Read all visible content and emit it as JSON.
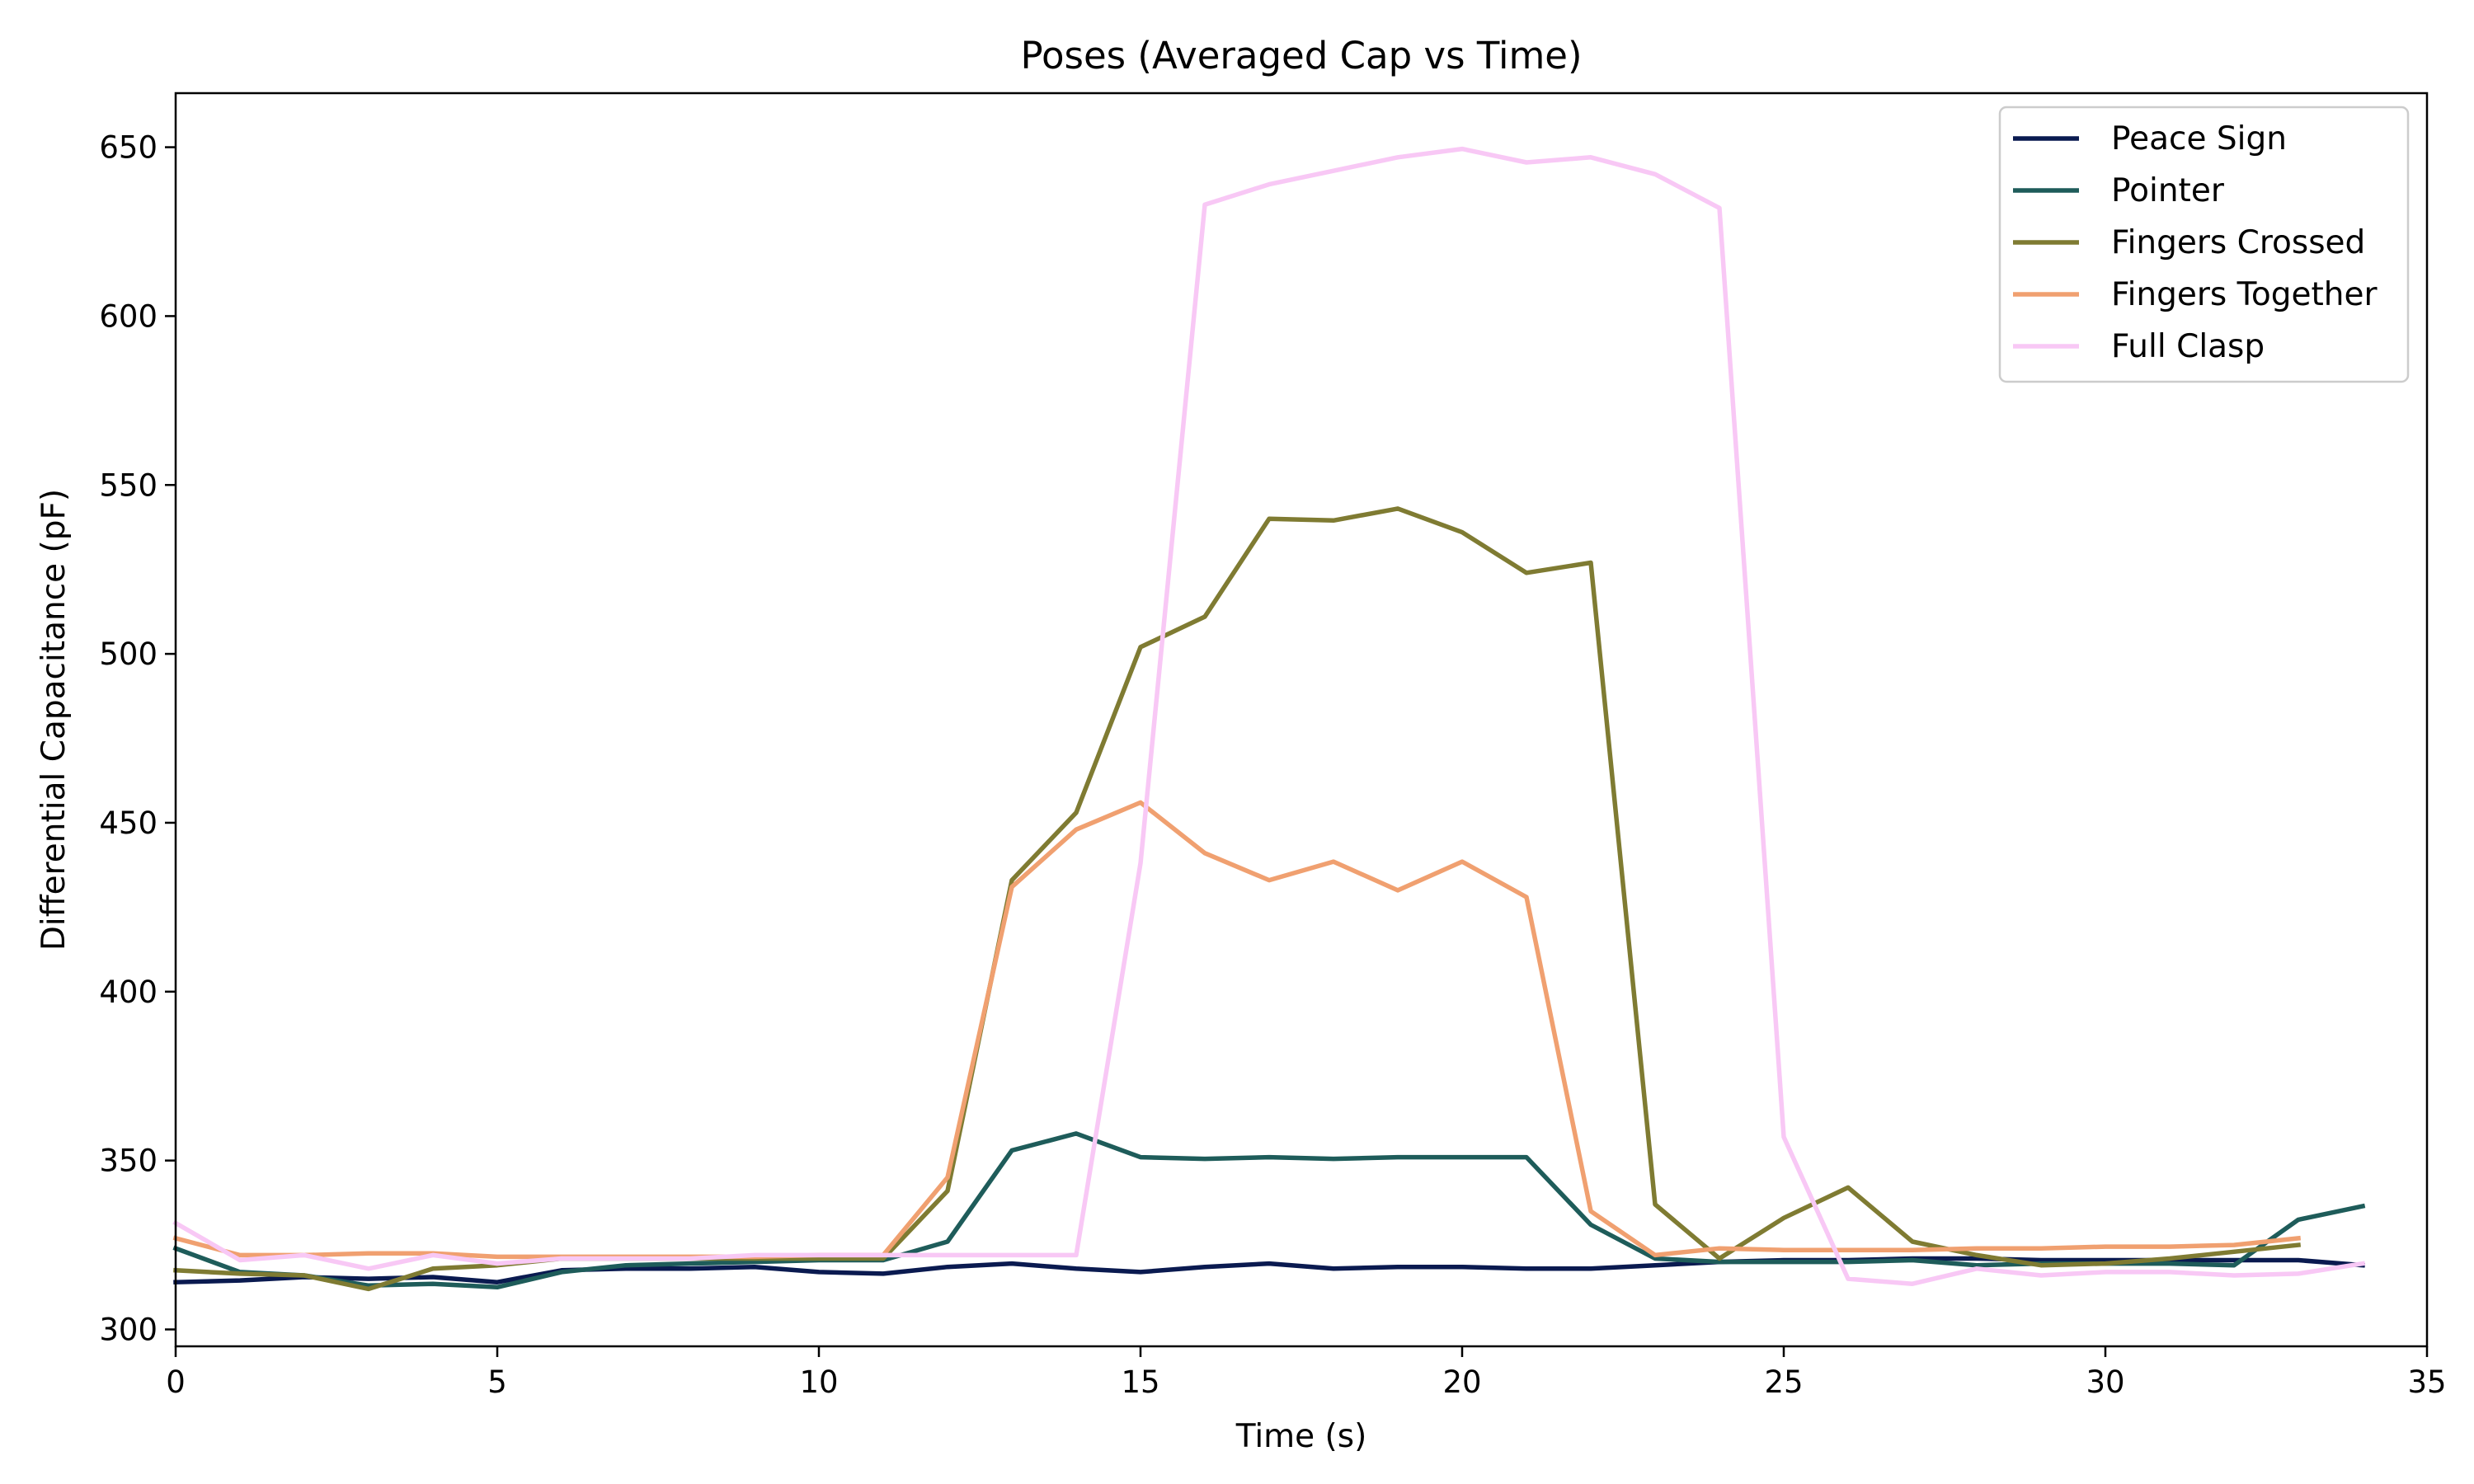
{
  "chart_data": {
    "type": "line",
    "title": "Poses (Averaged Cap vs Time)",
    "xlabel": "Time (s)",
    "ylabel": "Differential Capacitance (pF)",
    "xlim": [
      0,
      35
    ],
    "ylim": [
      295,
      666
    ],
    "xticks": [
      0,
      5,
      10,
      15,
      20,
      25,
      30,
      35
    ],
    "yticks": [
      300,
      350,
      400,
      450,
      500,
      550,
      600,
      650
    ],
    "grid": false,
    "legend_position": "top-right",
    "series": [
      {
        "name": "Peace Sign",
        "color": "#0a1a50",
        "x": [
          0,
          1,
          2,
          3,
          4,
          5,
          6,
          7,
          8,
          9,
          10,
          11,
          12,
          13,
          14,
          15,
          16,
          17,
          18,
          19,
          20,
          21,
          22,
          23,
          24,
          25,
          26,
          27,
          28,
          29,
          30,
          31,
          32,
          33,
          34
        ],
        "y": [
          314,
          314.5,
          315.5,
          315,
          315.5,
          314,
          317.5,
          318,
          318,
          318.5,
          317,
          316.5,
          318.5,
          319.5,
          318,
          317,
          318.5,
          319.5,
          318,
          318.5,
          318.5,
          318,
          318,
          319,
          320,
          320.5,
          320.5,
          321,
          321,
          320.5,
          320.5,
          320.5,
          320.5,
          320.5,
          319
        ]
      },
      {
        "name": "Pointer",
        "color": "#1e5c5a",
        "x": [
          0,
          1,
          2,
          3,
          4,
          5,
          6,
          7,
          8,
          9,
          10,
          11,
          12,
          13,
          14,
          15,
          16,
          17,
          18,
          19,
          20,
          21,
          22,
          23,
          24,
          25,
          26,
          27,
          28,
          29,
          30,
          31,
          32,
          33,
          34
        ],
        "y": [
          324,
          317,
          316,
          313,
          313.5,
          312.5,
          317,
          319,
          319.5,
          320,
          320.5,
          320.5,
          326,
          353,
          358,
          351,
          350.5,
          351,
          350.5,
          351,
          351,
          351,
          331,
          321,
          320,
          320,
          320,
          320.5,
          319,
          319.5,
          319.5,
          319.5,
          319,
          332.5,
          336.5
        ]
      },
      {
        "name": "Fingers Crossed",
        "color": "#7f7b32",
        "x": [
          0,
          1,
          2,
          3,
          4,
          5,
          6,
          7,
          8,
          9,
          10,
          11,
          12,
          13,
          14,
          15,
          16,
          17,
          18,
          19,
          20,
          21,
          22,
          23,
          24,
          25,
          26,
          27,
          28,
          29,
          30,
          31,
          32,
          33
        ],
        "y": [
          317.5,
          316.5,
          316,
          312,
          318,
          319,
          321,
          321,
          321,
          321,
          321,
          321,
          341,
          433,
          453,
          502,
          511,
          540,
          539.5,
          543,
          536,
          524,
          527,
          337,
          321,
          333,
          342,
          326,
          322,
          319,
          319.5,
          321,
          323,
          325
        ]
      },
      {
        "name": "Fingers Together",
        "color": "#f0a070",
        "x": [
          0,
          1,
          2,
          3,
          4,
          5,
          6,
          7,
          8,
          9,
          10,
          11,
          12,
          13,
          14,
          15,
          16,
          17,
          18,
          19,
          20,
          21,
          22,
          23,
          24,
          25,
          26,
          27,
          28,
          29,
          30,
          31,
          32,
          33
        ],
        "y": [
          327,
          322,
          322,
          322.5,
          322.5,
          321.5,
          321.5,
          321.5,
          321.5,
          321.5,
          322,
          322,
          345,
          431,
          448,
          456,
          441,
          433,
          438.5,
          430,
          438.5,
          428,
          335,
          322,
          324,
          323.5,
          323.5,
          323.5,
          324,
          324,
          324.5,
          324.5,
          325,
          327
        ]
      },
      {
        "name": "Full Clasp",
        "color": "#f8c8f5",
        "x": [
          0,
          1,
          2,
          3,
          4,
          5,
          6,
          7,
          8,
          9,
          10,
          11,
          12,
          13,
          14,
          15,
          16,
          17,
          18,
          19,
          20,
          21,
          22,
          23,
          24,
          25,
          26,
          27,
          28,
          29,
          30,
          31,
          32,
          33,
          34
        ],
        "y": [
          331.5,
          320.5,
          322,
          318,
          322,
          319.5,
          321,
          321,
          321,
          322,
          322,
          322,
          322,
          322,
          322,
          438,
          633,
          639,
          643,
          647,
          649.5,
          645.5,
          647,
          642,
          632,
          357,
          315,
          313.5,
          318,
          316,
          317,
          317,
          316,
          316.5,
          319.5
        ]
      }
    ]
  }
}
